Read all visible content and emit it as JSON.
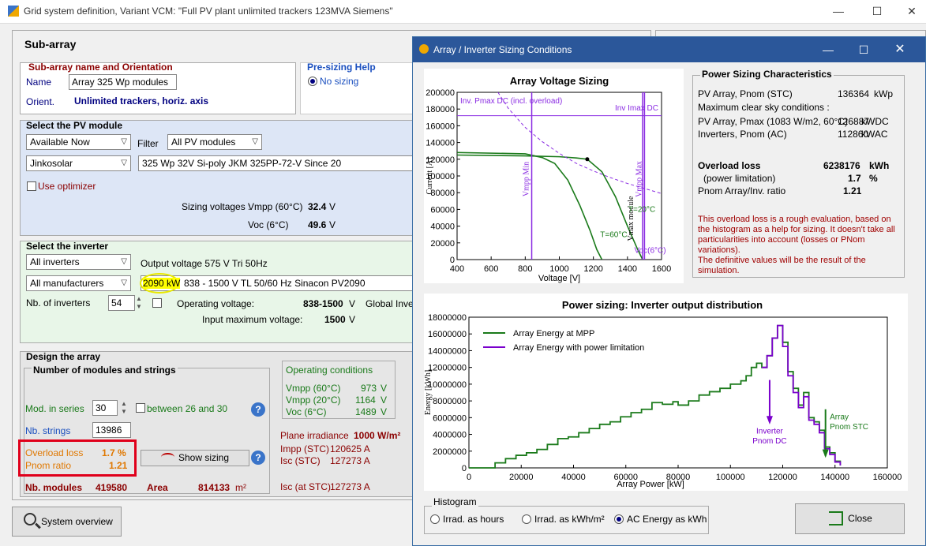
{
  "window": {
    "title": "Grid system definition, Variant VCM:   \"Full PV plant unlimited trackers 123MVA Siemens\"",
    "minimize": "—",
    "maximize": "☐",
    "close": "✕"
  },
  "subarray": {
    "header": "Sub-array",
    "name_section": {
      "title": "Sub-array name and Orientation",
      "name_label": "Name",
      "name_value": "Array 325 Wp modules",
      "orient_label": "Orient.",
      "orient_value": "Unlimited trackers, horiz. axis"
    },
    "presizing": {
      "title": "Pre-sizing Help",
      "option": "No sizing"
    },
    "pv_module": {
      "title": "Select the PV module",
      "availability": "Available Now",
      "filter_label": "Filter",
      "filter_value": "All PV modules",
      "manufacturer": "Jinkosolar",
      "model": "325 Wp 32V      Si-poly        JKM 325PP-72-V                    Since 20",
      "optimizer_label": "Use optimizer",
      "sizing_voltages_label": "Sizing voltages :",
      "vmpp_label": "Vmpp (60°C)",
      "vmpp_value": "32.4",
      "vmpp_unit": "V",
      "voc_label": "Voc (6°C)",
      "voc_value": "49.6",
      "voc_unit": "V"
    },
    "inverter": {
      "title": "Select the inverter",
      "filter": "All inverters",
      "output_voltage": "Output voltage 575 V Tri 50Hz",
      "manufacturer": "All manufacturers",
      "power": "2090 kW",
      "model": "838 - 1500 V  TL       50/60 Hz   Sinacon PV2090",
      "nb_label": "Nb. of inverters",
      "nb_value": "54",
      "op_voltage_label": "Operating voltage:",
      "op_voltage_value": "838-1500",
      "op_voltage_unit": "V",
      "global_label": "Global Inver",
      "input_max_label": "Input maximum voltage:",
      "input_max_value": "1500",
      "input_max_unit": "V"
    },
    "design": {
      "title": "Design the array",
      "modules_title": "Number of modules and strings",
      "mod_series_label": "Mod. in series",
      "mod_series_value": "30",
      "between_label": "between 26 and 30",
      "nb_strings_label": "Nb. strings",
      "nb_strings_value": "13986",
      "overload_label": "Overload loss",
      "overload_value": "1.7 %",
      "pnom_label": "Pnom ratio",
      "pnom_value": "1.21",
      "show_sizing": "Show sizing",
      "nb_modules_label": "Nb. modules",
      "nb_modules_value": "419580",
      "area_label": "Area",
      "area_value": "814133",
      "area_unit": "m²"
    },
    "operating": {
      "title": "Operating conditions",
      "rows": [
        {
          "label": "Vmpp (60°C)",
          "value": "973",
          "unit": "V"
        },
        {
          "label": "Vmpp (20°C)",
          "value": "1164",
          "unit": "V"
        },
        {
          "label": "Voc (6°C)",
          "value": "1489",
          "unit": "V"
        }
      ],
      "plane_irr_label": "Plane irradiance",
      "plane_irr_value": "1000 W/m²",
      "impp_label": "Impp (STC)",
      "impp_value": "120625 A",
      "isc_label": "Isc (STC)",
      "isc_value": "127273 A",
      "isc_at_label": "Isc (at STC)",
      "isc_at_value": "127273 A"
    },
    "system_overview": "System overview"
  },
  "dialog": {
    "title": "Array / Inverter Sizing Conditions",
    "voltage_chart": {
      "title": "Array Voltage Sizing",
      "xlabel": "Voltage [V]",
      "ylabel": "Current [A]",
      "x_ticks": [
        "400",
        "600",
        "800",
        "1000",
        "1200",
        "1400",
        "1600"
      ],
      "y_ticks": [
        "0",
        "20000",
        "40000",
        "60000",
        "80000",
        "100000",
        "120000",
        "140000",
        "160000",
        "180000",
        "200000"
      ],
      "annotations": {
        "pmax": "Inv. Pmax DC (incl. overload)",
        "imax": "Inv Imax DC",
        "vmpp_min": "Vmpp Min",
        "vmpp_max": "Vmpp Max",
        "vmax_module": "Vmax module",
        "t20": "T=20°C",
        "t60": "T=60°C",
        "voc6": "Voc(6°C)"
      }
    },
    "characteristics": {
      "title": "Power Sizing Characteristics",
      "pv_pnom_label": "PV Array, Pnom (STC)",
      "pv_pnom_value": "136364",
      "pv_pnom_unit": "kWp",
      "clear_sky_label": "Maximum clear sky conditions :",
      "pv_pmax_label": "PV Array, Pmax (1083 W/m2, 60°C)",
      "pv_pmax_value": "126887",
      "pv_pmax_unit": "kWDC",
      "inv_pnom_label": "Inverters, Pnom (AC)",
      "inv_pnom_value": "112860",
      "inv_pnom_unit": "kWAC",
      "overload_label": "Overload loss",
      "overload_value": "6238176",
      "overload_unit": "kWh",
      "power_lim_label": "(power limitation)",
      "power_lim_value": "1.7",
      "power_lim_unit": "%",
      "ratio_label": "Pnom Array/Inv. ratio",
      "ratio_value": "1.21",
      "note1": "This overload loss is a rough evaluation, based on the histogram as a help for sizing. It doesn't take all particularities into account (losses or PNom variations).",
      "note2": "The definitive values will be the result of the simulation."
    },
    "power_chart": {
      "title": "Power sizing: Inverter output distribution",
      "xlabel": "Array Power [kW]",
      "ylabel": "Energy [kWh]",
      "legend1": "Array Energy at MPP",
      "legend2": "Array Energy with power limitation",
      "ann_inverter1": "Inverter",
      "ann_inverter2": "Pnom DC",
      "ann_array1": "Array",
      "ann_array2": "Pnom STC",
      "x_ticks": [
        "0",
        "20000",
        "40000",
        "60000",
        "80000",
        "100000",
        "120000",
        "140000",
        "160000"
      ],
      "y_ticks": [
        "0",
        "2000000",
        "4000000",
        "6000000",
        "8000000",
        "10000000",
        "12000000",
        "14000000",
        "16000000",
        "18000000"
      ]
    },
    "histogram": {
      "title": "Histogram",
      "opt1": "Irrad. as hours",
      "opt2": "Irrad. as kWh/m²",
      "opt3": "AC Energy as kWh"
    },
    "close_button": "Close"
  },
  "colors": {
    "mpp": "#1a7a1a",
    "limited": "#7a00cc",
    "title_bar": "#2b579a",
    "highlight": "#ffff00",
    "alert": "#e0001b"
  },
  "chart_data": [
    {
      "type": "line",
      "title": "Array Voltage Sizing",
      "xlabel": "Voltage [V]",
      "ylabel": "Current [A]",
      "xlim": [
        400,
        1600
      ],
      "ylim": [
        0,
        200000
      ],
      "series": [
        {
          "name": "T=20°C",
          "x": [
            400,
            800,
            1000,
            1100,
            1164,
            1250,
            1330,
            1400,
            1460,
            1489
          ],
          "y": [
            125000,
            124000,
            123000,
            121500,
            120000,
            105000,
            75000,
            40000,
            12000,
            0
          ]
        },
        {
          "name": "T=60°C",
          "x": [
            400,
            800,
            900,
            973,
            1050,
            1120,
            1180,
            1220,
            1250
          ],
          "y": [
            128000,
            126500,
            122000,
            115000,
            95000,
            65000,
            35000,
            12000,
            0
          ]
        },
        {
          "name": "Inv. Pmax DC (incl. overload)",
          "x": [
            640,
            700,
            800,
            900,
            1000,
            1100,
            1200,
            1300,
            1400,
            1500,
            1600
          ],
          "y": [
            200000,
            181000,
            158000,
            141000,
            127000,
            115000,
            106000,
            98000,
            91000,
            85000,
            79000
          ]
        },
        {
          "name": "Inv Imax DC",
          "x": [
            400,
            1600
          ],
          "y": [
            172000,
            172000
          ]
        }
      ],
      "vlines": [
        838,
        1500,
        1489
      ],
      "annotations": [
        "Vmpp Min",
        "Vmpp Max",
        "Vmax module",
        "Voc(6°C)"
      ]
    },
    {
      "type": "line",
      "title": "Power sizing: Inverter output distribution",
      "xlabel": "Array Power [kW]",
      "ylabel": "Energy [kWh]",
      "xlim": [
        0,
        160000
      ],
      "ylim": [
        0,
        18000000
      ],
      "series": [
        {
          "name": "Array Energy at MPP",
          "x": [
            0,
            10000,
            14000,
            18000,
            22000,
            26000,
            30000,
            34000,
            38000,
            42000,
            46000,
            50000,
            54000,
            58000,
            62000,
            66000,
            70000,
            74000,
            78000,
            80000,
            84000,
            88000,
            92000,
            96000,
            100000,
            104000,
            106000,
            108000,
            110000,
            112000,
            114000,
            116000,
            118000,
            120000,
            122000,
            124000,
            126000,
            128000,
            130000,
            132000,
            134000,
            136000,
            138000,
            140000,
            142000
          ],
          "y": [
            0,
            600000,
            1100000,
            1500000,
            1800000,
            2200000,
            2800000,
            3500000,
            3700000,
            4200000,
            4700000,
            5200000,
            5500000,
            6100000,
            6600000,
            7000000,
            7800000,
            7600000,
            7900000,
            7500000,
            8000000,
            8700000,
            9100000,
            9500000,
            10000000,
            10400000,
            11000000,
            12000000,
            12500000,
            12000000,
            13400000,
            15500000,
            17000000,
            15000000,
            11500000,
            9500000,
            7500000,
            9000000,
            6000000,
            5500000,
            4500000,
            2500000,
            1800000,
            800000,
            300000
          ]
        },
        {
          "name": "Array Energy with power limitation",
          "x": [
            112000,
            114000,
            116000,
            118000,
            120000,
            122000,
            124000,
            126000,
            128000,
            130000,
            132000,
            134000,
            136000,
            138000,
            140000,
            142000
          ],
          "y": [
            12000000,
            13400000,
            15500000,
            17000000,
            14500000,
            11000000,
            9000000,
            7200000,
            8500000,
            5700000,
            5200000,
            4200000,
            2300000,
            1600000,
            700000,
            300000
          ]
        }
      ],
      "annotations": [
        "Inverter Pnom DC",
        "Array Pnom STC"
      ],
      "legend": "top-left"
    }
  ]
}
